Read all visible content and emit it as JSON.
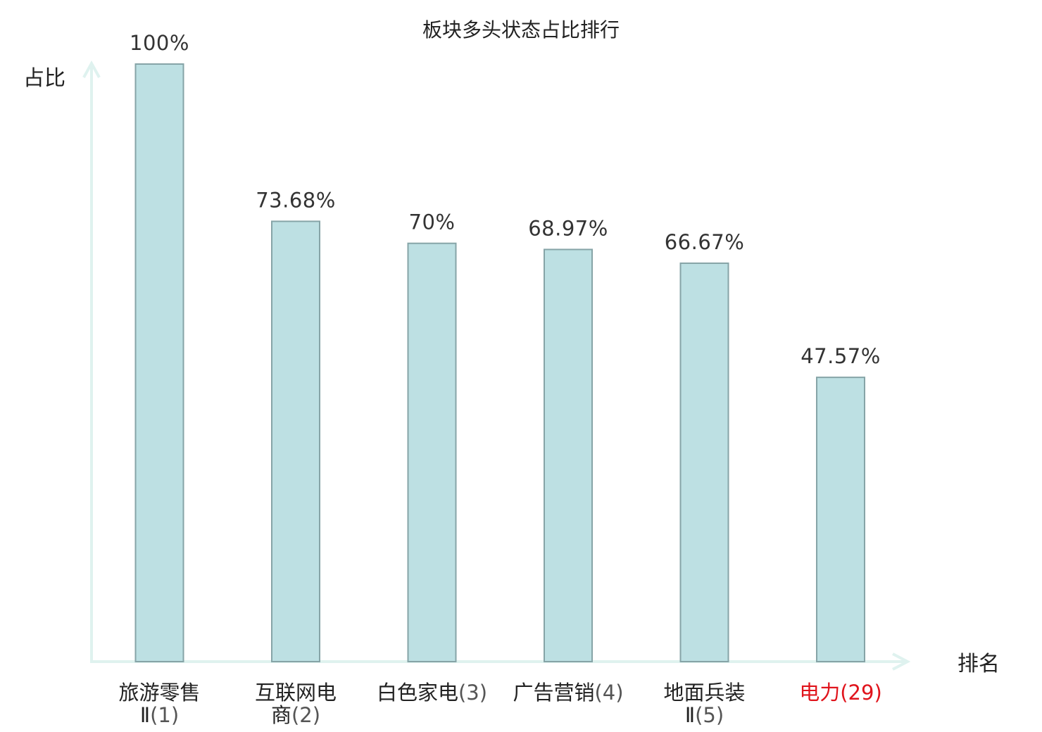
{
  "chart_data": {
    "type": "bar",
    "title": "板块多头状态占比排行",
    "ylabel": "占比",
    "xlabel": "排名",
    "ylim": [
      0,
      100
    ],
    "grid": false,
    "legend": "none",
    "categories": [
      {
        "name_lines": [
          "旅游零售",
          "Ⅱ"
        ],
        "rank": "(1)",
        "highlight": false
      },
      {
        "name_lines": [
          "互联网电",
          "商"
        ],
        "rank": "(2)",
        "highlight": false
      },
      {
        "name_lines": [
          "白色家电"
        ],
        "rank": "(3)",
        "highlight": false
      },
      {
        "name_lines": [
          "广告营销"
        ],
        "rank": "(4)",
        "highlight": false
      },
      {
        "name_lines": [
          "地面兵装",
          "Ⅱ"
        ],
        "rank": "(5)",
        "highlight": false
      },
      {
        "name_lines": [
          "电力"
        ],
        "rank": "(29)",
        "highlight": true
      }
    ],
    "values": [
      100,
      73.68,
      70,
      68.97,
      66.67,
      47.57
    ],
    "value_labels": [
      "100%",
      "73.68%",
      "70%",
      "68.97%",
      "66.67%",
      "47.57%"
    ],
    "colors": {
      "bar_fill": "#bde0e3",
      "bar_stroke": "#86a4a7",
      "axis": "#dff2ef",
      "highlight": "#e0141c"
    }
  }
}
